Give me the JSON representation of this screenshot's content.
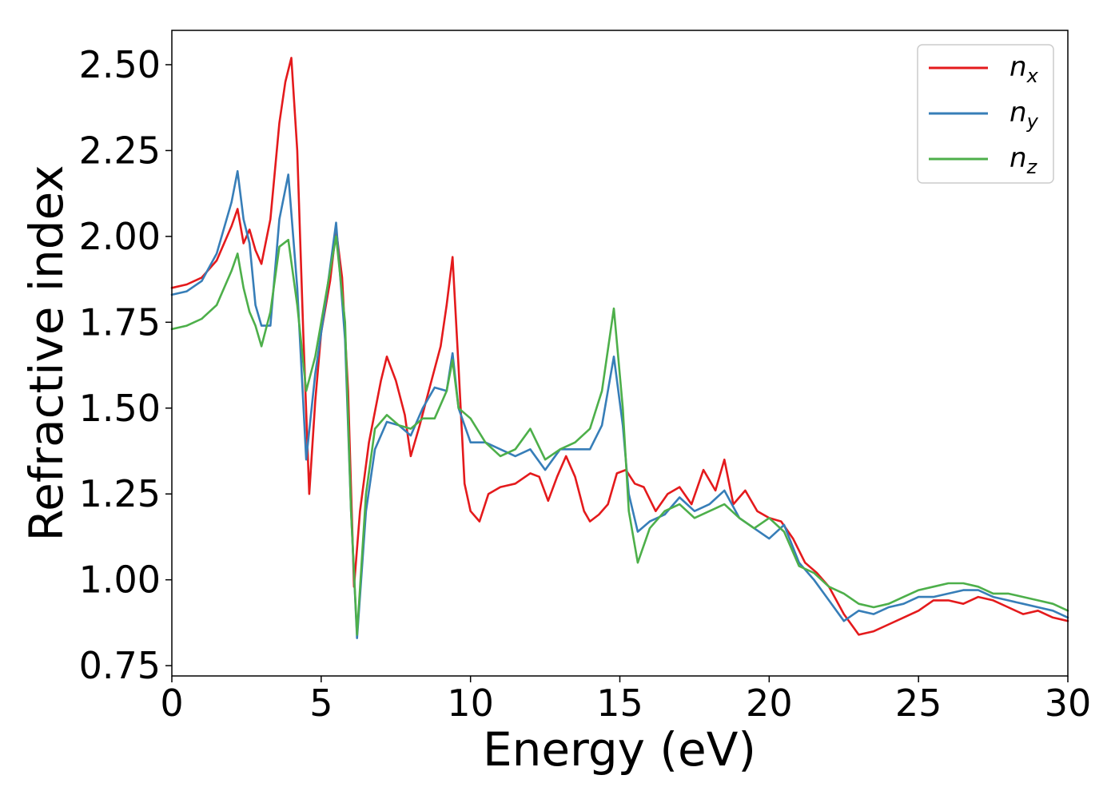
{
  "chart_data": {
    "type": "line",
    "xlabel": "Energy (eV)",
    "ylabel": "Refractive index",
    "xlim": [
      0,
      30
    ],
    "ylim": [
      0.72,
      2.6
    ],
    "x_ticks": [
      0,
      5,
      10,
      15,
      20,
      25,
      30
    ],
    "x_tick_labels": [
      "0",
      "5",
      "10",
      "15",
      "20",
      "25",
      "30"
    ],
    "y_ticks": [
      0.75,
      1.0,
      1.25,
      1.5,
      1.75,
      2.0,
      2.25,
      2.5
    ],
    "y_tick_labels": [
      "0.75",
      "1.00",
      "1.25",
      "1.50",
      "1.75",
      "2.00",
      "2.25",
      "2.50"
    ],
    "grid": false,
    "legend_position": "top-right",
    "series": [
      {
        "name": "n",
        "subscript": "x",
        "color": "#e41a1c",
        "x": [
          0,
          0.5,
          1.0,
          1.5,
          2.0,
          2.2,
          2.4,
          2.6,
          2.8,
          3.0,
          3.3,
          3.6,
          3.8,
          4.0,
          4.2,
          4.4,
          4.6,
          4.8,
          5.0,
          5.3,
          5.5,
          5.7,
          5.9,
          6.1,
          6.3,
          6.6,
          7.0,
          7.2,
          7.5,
          7.8,
          8.0,
          8.3,
          8.6,
          9.0,
          9.2,
          9.4,
          9.6,
          9.8,
          10.0,
          10.3,
          10.6,
          11.0,
          11.5,
          12.0,
          12.3,
          12.6,
          12.9,
          13.2,
          13.5,
          13.8,
          14.0,
          14.3,
          14.6,
          14.9,
          15.2,
          15.5,
          15.8,
          16.2,
          16.6,
          17.0,
          17.4,
          17.8,
          18.2,
          18.5,
          18.8,
          19.2,
          19.6,
          20.0,
          20.4,
          20.8,
          21.2,
          21.6,
          22.0,
          22.5,
          23.0,
          23.5,
          24.0,
          24.5,
          25.0,
          25.5,
          26.0,
          26.5,
          27.0,
          27.5,
          28.0,
          28.5,
          29.0,
          29.5,
          30.0
        ],
        "y": [
          1.85,
          1.86,
          1.88,
          1.93,
          2.03,
          2.08,
          1.98,
          2.02,
          1.96,
          1.92,
          2.05,
          2.33,
          2.45,
          2.52,
          2.25,
          1.72,
          1.25,
          1.52,
          1.72,
          1.87,
          2.02,
          1.88,
          1.55,
          0.98,
          1.2,
          1.4,
          1.58,
          1.65,
          1.58,
          1.48,
          1.36,
          1.45,
          1.55,
          1.68,
          1.8,
          1.94,
          1.62,
          1.28,
          1.2,
          1.17,
          1.25,
          1.27,
          1.28,
          1.31,
          1.3,
          1.23,
          1.3,
          1.36,
          1.3,
          1.2,
          1.17,
          1.19,
          1.22,
          1.31,
          1.32,
          1.28,
          1.27,
          1.2,
          1.25,
          1.27,
          1.22,
          1.32,
          1.26,
          1.35,
          1.22,
          1.26,
          1.2,
          1.18,
          1.17,
          1.12,
          1.05,
          1.02,
          0.98,
          0.9,
          0.84,
          0.85,
          0.87,
          0.89,
          0.91,
          0.94,
          0.94,
          0.93,
          0.95,
          0.94,
          0.92,
          0.9,
          0.91,
          0.89,
          0.88
        ]
      },
      {
        "name": "n",
        "subscript": "y",
        "color": "#377eb8",
        "x": [
          0,
          0.5,
          1.0,
          1.5,
          2.0,
          2.2,
          2.4,
          2.6,
          2.8,
          3.0,
          3.3,
          3.6,
          3.9,
          4.2,
          4.5,
          4.8,
          5.1,
          5.5,
          5.8,
          6.0,
          6.2,
          6.5,
          6.8,
          7.2,
          7.6,
          8.0,
          8.4,
          8.8,
          9.2,
          9.4,
          9.6,
          10.0,
          10.5,
          11.0,
          11.5,
          12.0,
          12.5,
          13.0,
          13.5,
          14.0,
          14.4,
          14.8,
          15.1,
          15.3,
          15.6,
          16.0,
          16.5,
          17.0,
          17.5,
          18.0,
          18.5,
          19.0,
          19.5,
          20.0,
          20.5,
          21.0,
          21.5,
          22.0,
          22.5,
          23.0,
          23.5,
          24.0,
          24.5,
          25.0,
          25.5,
          26.0,
          26.5,
          27.0,
          27.5,
          28.0,
          28.5,
          29.0,
          29.5,
          30.0
        ],
        "y": [
          1.83,
          1.84,
          1.87,
          1.95,
          2.1,
          2.19,
          2.05,
          1.98,
          1.8,
          1.74,
          1.74,
          2.05,
          2.18,
          1.85,
          1.35,
          1.6,
          1.78,
          2.04,
          1.7,
          1.2,
          0.83,
          1.2,
          1.38,
          1.46,
          1.45,
          1.42,
          1.5,
          1.56,
          1.55,
          1.66,
          1.5,
          1.4,
          1.4,
          1.38,
          1.36,
          1.38,
          1.32,
          1.38,
          1.38,
          1.38,
          1.45,
          1.65,
          1.45,
          1.25,
          1.14,
          1.17,
          1.19,
          1.24,
          1.2,
          1.22,
          1.26,
          1.18,
          1.15,
          1.12,
          1.16,
          1.05,
          1.0,
          0.94,
          0.88,
          0.91,
          0.9,
          0.92,
          0.93,
          0.95,
          0.95,
          0.96,
          0.97,
          0.97,
          0.95,
          0.94,
          0.93,
          0.92,
          0.91,
          0.89
        ]
      },
      {
        "name": "n",
        "subscript": "z",
        "color": "#4daf4a",
        "x": [
          0,
          0.5,
          1.0,
          1.5,
          2.0,
          2.2,
          2.4,
          2.6,
          2.8,
          3.0,
          3.3,
          3.6,
          3.9,
          4.2,
          4.5,
          4.8,
          5.1,
          5.5,
          5.8,
          6.0,
          6.2,
          6.5,
          6.8,
          7.2,
          7.6,
          8.0,
          8.4,
          8.8,
          9.2,
          9.4,
          9.6,
          10.0,
          10.5,
          11.0,
          11.5,
          12.0,
          12.5,
          13.0,
          13.5,
          14.0,
          14.4,
          14.8,
          15.1,
          15.3,
          15.6,
          16.0,
          16.5,
          17.0,
          17.5,
          18.0,
          18.5,
          19.0,
          19.5,
          20.0,
          20.5,
          21.0,
          21.5,
          22.0,
          22.5,
          23.0,
          23.5,
          24.0,
          24.5,
          25.0,
          25.5,
          26.0,
          26.5,
          27.0,
          27.5,
          28.0,
          28.5,
          29.0,
          29.5,
          30.0
        ],
        "y": [
          1.73,
          1.74,
          1.76,
          1.8,
          1.9,
          1.95,
          1.85,
          1.78,
          1.74,
          1.68,
          1.78,
          1.97,
          1.99,
          1.8,
          1.55,
          1.65,
          1.8,
          2.0,
          1.75,
          1.2,
          0.84,
          1.25,
          1.44,
          1.48,
          1.45,
          1.44,
          1.47,
          1.47,
          1.55,
          1.64,
          1.5,
          1.47,
          1.4,
          1.36,
          1.38,
          1.44,
          1.35,
          1.38,
          1.4,
          1.44,
          1.55,
          1.79,
          1.5,
          1.2,
          1.05,
          1.15,
          1.2,
          1.22,
          1.18,
          1.2,
          1.22,
          1.18,
          1.15,
          1.18,
          1.14,
          1.04,
          1.02,
          0.98,
          0.96,
          0.93,
          0.92,
          0.93,
          0.95,
          0.97,
          0.98,
          0.99,
          0.99,
          0.98,
          0.96,
          0.96,
          0.95,
          0.94,
          0.93,
          0.91
        ]
      }
    ]
  }
}
